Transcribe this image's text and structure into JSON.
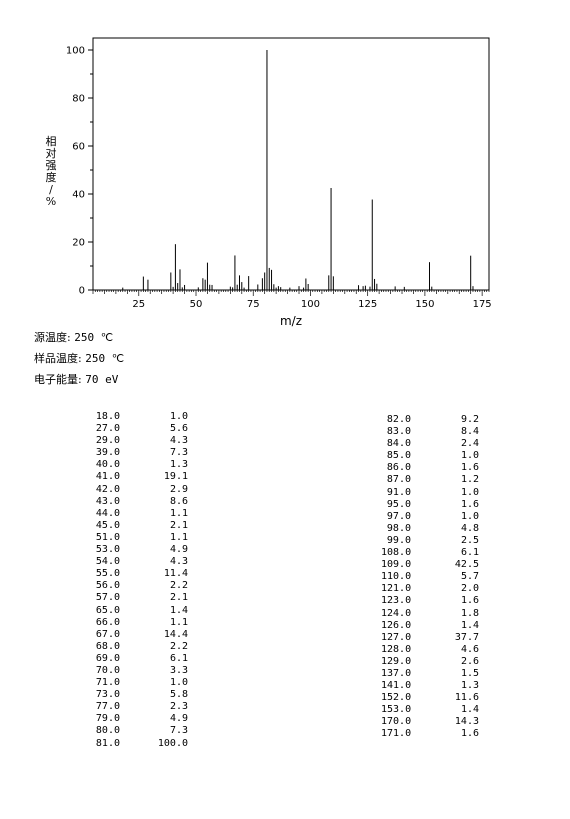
{
  "chart_data": {
    "type": "bar",
    "ylabel": "相对强度/%",
    "xlabel": "m/z",
    "xlim": [
      5,
      178
    ],
    "ylim": [
      0,
      105
    ],
    "x_ticks": [
      25,
      50,
      75,
      100,
      125,
      150,
      175
    ],
    "y_ticks": [
      0,
      20,
      40,
      60,
      80,
      100
    ],
    "grid": false,
    "peaks": [
      {
        "mz": 18.0,
        "ri": 1.0
      },
      {
        "mz": 27.0,
        "ri": 5.6
      },
      {
        "mz": 29.0,
        "ri": 4.3
      },
      {
        "mz": 39.0,
        "ri": 7.3
      },
      {
        "mz": 40.0,
        "ri": 1.3
      },
      {
        "mz": 41.0,
        "ri": 19.1
      },
      {
        "mz": 42.0,
        "ri": 2.9
      },
      {
        "mz": 43.0,
        "ri": 8.6
      },
      {
        "mz": 44.0,
        "ri": 1.1
      },
      {
        "mz": 45.0,
        "ri": 2.1
      },
      {
        "mz": 51.0,
        "ri": 1.1
      },
      {
        "mz": 53.0,
        "ri": 4.9
      },
      {
        "mz": 54.0,
        "ri": 4.3
      },
      {
        "mz": 55.0,
        "ri": 11.4
      },
      {
        "mz": 56.0,
        "ri": 2.2
      },
      {
        "mz": 57.0,
        "ri": 2.1
      },
      {
        "mz": 65.0,
        "ri": 1.4
      },
      {
        "mz": 66.0,
        "ri": 1.1
      },
      {
        "mz": 67.0,
        "ri": 14.4
      },
      {
        "mz": 68.0,
        "ri": 2.2
      },
      {
        "mz": 69.0,
        "ri": 6.1
      },
      {
        "mz": 70.0,
        "ri": 3.3
      },
      {
        "mz": 71.0,
        "ri": 1.0
      },
      {
        "mz": 73.0,
        "ri": 5.8
      },
      {
        "mz": 77.0,
        "ri": 2.3
      },
      {
        "mz": 79.0,
        "ri": 4.9
      },
      {
        "mz": 80.0,
        "ri": 7.3
      },
      {
        "mz": 81.0,
        "ri": 100.0
      },
      {
        "mz": 82.0,
        "ri": 9.2
      },
      {
        "mz": 83.0,
        "ri": 8.4
      },
      {
        "mz": 84.0,
        "ri": 2.4
      },
      {
        "mz": 85.0,
        "ri": 1.0
      },
      {
        "mz": 86.0,
        "ri": 1.6
      },
      {
        "mz": 87.0,
        "ri": 1.2
      },
      {
        "mz": 91.0,
        "ri": 1.0
      },
      {
        "mz": 95.0,
        "ri": 1.6
      },
      {
        "mz": 97.0,
        "ri": 1.0
      },
      {
        "mz": 98.0,
        "ri": 4.8
      },
      {
        "mz": 99.0,
        "ri": 2.5
      },
      {
        "mz": 108.0,
        "ri": 6.1
      },
      {
        "mz": 109.0,
        "ri": 42.5
      },
      {
        "mz": 110.0,
        "ri": 5.7
      },
      {
        "mz": 121.0,
        "ri": 2.0
      },
      {
        "mz": 123.0,
        "ri": 1.6
      },
      {
        "mz": 124.0,
        "ri": 1.8
      },
      {
        "mz": 126.0,
        "ri": 1.4
      },
      {
        "mz": 127.0,
        "ri": 37.7
      },
      {
        "mz": 128.0,
        "ri": 4.6
      },
      {
        "mz": 129.0,
        "ri": 2.6
      },
      {
        "mz": 137.0,
        "ri": 1.5
      },
      {
        "mz": 141.0,
        "ri": 1.3
      },
      {
        "mz": 152.0,
        "ri": 11.6
      },
      {
        "mz": 153.0,
        "ri": 1.4
      },
      {
        "mz": 170.0,
        "ri": 14.3
      },
      {
        "mz": 171.0,
        "ri": 1.6
      }
    ]
  },
  "conditions": [
    {
      "label": "源温度:",
      "value": "250 ℃"
    },
    {
      "label": "样品温度:",
      "value": "250 ℃"
    },
    {
      "label": "电子能量:",
      "value": "70 eV"
    }
  ],
  "peak_table": {
    "left": [
      {
        "mz": "18.0",
        "ri": "1.0"
      },
      {
        "mz": "27.0",
        "ri": "5.6"
      },
      {
        "mz": "29.0",
        "ri": "4.3"
      },
      {
        "mz": "39.0",
        "ri": "7.3"
      },
      {
        "mz": "40.0",
        "ri": "1.3"
      },
      {
        "mz": "41.0",
        "ri": "19.1"
      },
      {
        "mz": "42.0",
        "ri": "2.9"
      },
      {
        "mz": "43.0",
        "ri": "8.6"
      },
      {
        "mz": "44.0",
        "ri": "1.1"
      },
      {
        "mz": "45.0",
        "ri": "2.1"
      },
      {
        "mz": "51.0",
        "ri": "1.1"
      },
      {
        "mz": "53.0",
        "ri": "4.9"
      },
      {
        "mz": "54.0",
        "ri": "4.3"
      },
      {
        "mz": "55.0",
        "ri": "11.4"
      },
      {
        "mz": "56.0",
        "ri": "2.2"
      },
      {
        "mz": "57.0",
        "ri": "2.1"
      },
      {
        "mz": "65.0",
        "ri": "1.4"
      },
      {
        "mz": "66.0",
        "ri": "1.1"
      },
      {
        "mz": "67.0",
        "ri": "14.4"
      },
      {
        "mz": "68.0",
        "ri": "2.2"
      },
      {
        "mz": "69.0",
        "ri": "6.1"
      },
      {
        "mz": "70.0",
        "ri": "3.3"
      },
      {
        "mz": "71.0",
        "ri": "1.0"
      },
      {
        "mz": "73.0",
        "ri": "5.8"
      },
      {
        "mz": "77.0",
        "ri": "2.3"
      },
      {
        "mz": "79.0",
        "ri": "4.9"
      },
      {
        "mz": "80.0",
        "ri": "7.3"
      },
      {
        "mz": "81.0",
        "ri": "100.0"
      }
    ],
    "right": [
      {
        "mz": "82.0",
        "ri": "9.2"
      },
      {
        "mz": "83.0",
        "ri": "8.4"
      },
      {
        "mz": "84.0",
        "ri": "2.4"
      },
      {
        "mz": "85.0",
        "ri": "1.0"
      },
      {
        "mz": "86.0",
        "ri": "1.6"
      },
      {
        "mz": "87.0",
        "ri": "1.2"
      },
      {
        "mz": "91.0",
        "ri": "1.0"
      },
      {
        "mz": "95.0",
        "ri": "1.6"
      },
      {
        "mz": "97.0",
        "ri": "1.0"
      },
      {
        "mz": "98.0",
        "ri": "4.8"
      },
      {
        "mz": "99.0",
        "ri": "2.5"
      },
      {
        "mz": "108.0",
        "ri": "6.1"
      },
      {
        "mz": "109.0",
        "ri": "42.5"
      },
      {
        "mz": "110.0",
        "ri": "5.7"
      },
      {
        "mz": "121.0",
        "ri": "2.0"
      },
      {
        "mz": "123.0",
        "ri": "1.6"
      },
      {
        "mz": "124.0",
        "ri": "1.8"
      },
      {
        "mz": "126.0",
        "ri": "1.4"
      },
      {
        "mz": "127.0",
        "ri": "37.7"
      },
      {
        "mz": "128.0",
        "ri": "4.6"
      },
      {
        "mz": "129.0",
        "ri": "2.6"
      },
      {
        "mz": "137.0",
        "ri": "1.5"
      },
      {
        "mz": "141.0",
        "ri": "1.3"
      },
      {
        "mz": "152.0",
        "ri": "11.6"
      },
      {
        "mz": "153.0",
        "ri": "1.4"
      },
      {
        "mz": "170.0",
        "ri": "14.3"
      },
      {
        "mz": "171.0",
        "ri": "1.6"
      }
    ]
  }
}
